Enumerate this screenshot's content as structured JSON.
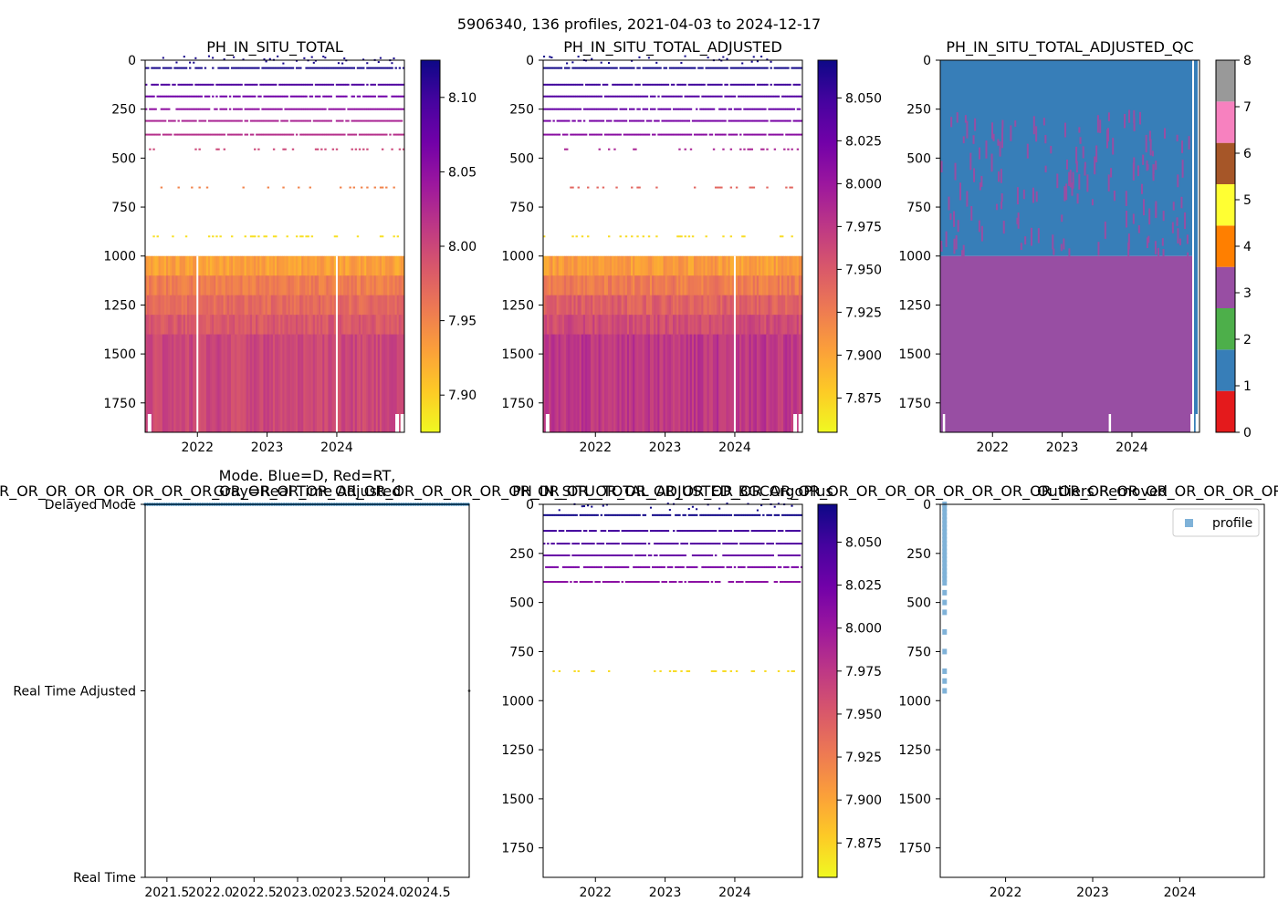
{
  "suptitle": "5906340, 136 profiles, 2021-04-03 to 2024-12-17",
  "colors": {
    "plasma": [
      "#f0f921",
      "#fdca26",
      "#fb9f3a",
      "#ed7953",
      "#d8576b",
      "#bd3786",
      "#9c179e",
      "#7201a8",
      "#46039f",
      "#0d0887"
    ],
    "qc": [
      "#e41a1c",
      "#377eb8",
      "#4daf4a",
      "#984ea3",
      "#ff7f00",
      "#ffff33",
      "#a65628",
      "#f781bf",
      "#999999"
    ],
    "mode_point": "#1f77b4",
    "profile_marker": "#7fb2d8"
  },
  "chart_data": [
    {
      "id": "p1",
      "type": "heatmap",
      "title": "PH_IN_SITU_TOTAL",
      "xlabel": "",
      "ylabel": "",
      "xlim": [
        2021.25,
        2024.97
      ],
      "ylim": [
        1900,
        0
      ],
      "x_ticks": [
        2022,
        2023,
        2024
      ],
      "y_ticks": [
        0,
        250,
        500,
        750,
        1000,
        1250,
        1500,
        1750
      ],
      "colorbar": {
        "range": [
          7.875,
          8.125
        ],
        "ticks": [
          7.9,
          7.95,
          8.0,
          8.05,
          8.1
        ],
        "tick_labels": [
          "7.90",
          "7.95",
          "8.00",
          "8.05",
          "8.10"
        ]
      },
      "sparse_depths": [
        {
          "depth": 40,
          "value": 8.12
        },
        {
          "depth": 125,
          "value": 8.09
        },
        {
          "depth": 185,
          "value": 8.07
        },
        {
          "depth": 250,
          "value": 8.05
        },
        {
          "depth": 310,
          "value": 8.03
        },
        {
          "depth": 380,
          "value": 8.02
        },
        {
          "depth": 455,
          "value": 8.0
        },
        {
          "depth": 650,
          "value": 7.95
        },
        {
          "depth": 900,
          "value": 7.89
        }
      ],
      "dense_bands": [
        {
          "from": 1000,
          "to": 1100,
          "value": 7.93
        },
        {
          "from": 1100,
          "to": 1200,
          "value": 7.955
        },
        {
          "from": 1200,
          "to": 1300,
          "value": 7.97
        },
        {
          "from": 1300,
          "to": 1400,
          "value": 7.985
        },
        {
          "from": 1400,
          "to": 1900,
          "value": 8.0
        }
      ],
      "gap_years": [
        2022.0,
        2024.0
      ]
    },
    {
      "id": "p2",
      "type": "heatmap",
      "title": "PH_IN_SITU_TOTAL_ADJUSTED",
      "xlim": [
        2021.25,
        2024.97
      ],
      "ylim": [
        1900,
        0
      ],
      "x_ticks": [
        2022,
        2023,
        2024
      ],
      "y_ticks": [
        0,
        250,
        500,
        750,
        1000,
        1250,
        1500,
        1750
      ],
      "colorbar": {
        "range": [
          7.855,
          8.072
        ],
        "ticks": [
          7.875,
          7.9,
          7.925,
          7.95,
          7.975,
          8.0,
          8.025,
          8.05
        ],
        "tick_labels": [
          "7.875",
          "7.900",
          "7.925",
          "7.950",
          "7.975",
          "8.000",
          "8.025",
          "8.050"
        ]
      },
      "sparse_depths": [
        {
          "depth": 40,
          "value": 8.07
        },
        {
          "depth": 125,
          "value": 8.05
        },
        {
          "depth": 185,
          "value": 8.04
        },
        {
          "depth": 250,
          "value": 8.03
        },
        {
          "depth": 310,
          "value": 8.02
        },
        {
          "depth": 380,
          "value": 8.01
        },
        {
          "depth": 455,
          "value": 7.99
        },
        {
          "depth": 650,
          "value": 7.94
        },
        {
          "depth": 900,
          "value": 7.87
        }
      ],
      "dense_bands": [
        {
          "from": 1000,
          "to": 1100,
          "value": 7.905
        },
        {
          "from": 1100,
          "to": 1200,
          "value": 7.925
        },
        {
          "from": 1200,
          "to": 1300,
          "value": 7.945
        },
        {
          "from": 1300,
          "to": 1400,
          "value": 7.96
        },
        {
          "from": 1400,
          "to": 1900,
          "value": 7.975
        }
      ],
      "gap_years": [
        2024.0
      ]
    },
    {
      "id": "p3",
      "type": "heatmap",
      "title": "PH_IN_SITU_TOTAL_ADJUSTED_QC",
      "xlim": [
        2021.25,
        2024.97
      ],
      "ylim": [
        1900,
        0
      ],
      "x_ticks": [
        2022,
        2023,
        2024
      ],
      "y_ticks": [
        0,
        250,
        500,
        750,
        1000,
        1250,
        1500,
        1750
      ],
      "colorbar": {
        "range": [
          0,
          8
        ],
        "ticks": [
          0,
          1,
          2,
          3,
          4,
          5,
          6,
          7,
          8
        ],
        "tick_labels": [
          "0",
          "1",
          "2",
          "3",
          "4",
          "5",
          "6",
          "7",
          "8"
        ]
      },
      "qc_regions": [
        {
          "from": 0,
          "to": 1000,
          "flag": 1
        },
        {
          "from": 1000,
          "to": 1900,
          "flag": 3
        }
      ],
      "qc_spots_flag": 3
    },
    {
      "id": "p4",
      "type": "scatter",
      "title_lines": [
        "Mode. Blue=D, Red=RT,",
        "Gray=Real Time Adjusted"
      ],
      "overlay_text": "OR_OR_OR_OR_OR_OR_OR_OR_OR_OR_OR_OR_OR_OR_OR_OR_OR_OR_OR_OR_OR_OR_OR_OR_OR_OR_OR_OR_OR_OR_OR_OR_OR_OR_OR_OR_OR_OR_OR_OR_OR_OR_OR_OR_OR_",
      "xlim": [
        2021.25,
        2024.97
      ],
      "ylim": [
        0,
        2
      ],
      "x_ticks": [
        2021.5,
        2022.0,
        2022.5,
        2023.0,
        2023.5,
        2024.0,
        2024.5
      ],
      "x_tick_labels": [
        "2021.5",
        "2022.0",
        "2022.5",
        "2023.0",
        "2023.5",
        "2024.0",
        "2024.5"
      ],
      "y_ticks": [
        0,
        1,
        2
      ],
      "y_tick_labels": [
        "Real Time",
        "Real Time Adjusted",
        "Delayed Mode"
      ],
      "series": [
        {
          "name": "mode",
          "value": 2,
          "n_profiles": 136,
          "x_start": 2021.25,
          "x_end": 2024.96
        }
      ]
    },
    {
      "id": "p5",
      "type": "heatmap",
      "title": "PH_IN_SITU_TOTAL_ADJUSTED_BGCArgoPlus",
      "xlim": [
        2021.25,
        2024.97
      ],
      "ylim": [
        1900,
        0
      ],
      "x_ticks": [
        2022,
        2023,
        2024
      ],
      "y_ticks": [
        0,
        250,
        500,
        750,
        1000,
        1250,
        1500,
        1750
      ],
      "colorbar": {
        "range": [
          7.855,
          8.072
        ],
        "ticks": [
          7.875,
          7.9,
          7.925,
          7.95,
          7.975,
          8.0,
          8.025,
          8.05
        ],
        "tick_labels": [
          "7.875",
          "7.900",
          "7.925",
          "7.950",
          "7.975",
          "8.000",
          "8.025",
          "8.050"
        ]
      },
      "sparse_depths": [
        {
          "depth": 55,
          "value": 8.07
        },
        {
          "depth": 135,
          "value": 8.05
        },
        {
          "depth": 200,
          "value": 8.04
        },
        {
          "depth": 260,
          "value": 8.03
        },
        {
          "depth": 320,
          "value": 8.02
        },
        {
          "depth": 395,
          "value": 8.01
        },
        {
          "depth": 850,
          "value": 7.87
        }
      ]
    },
    {
      "id": "p6",
      "type": "scatter",
      "title": "Outliers Removed",
      "xlim": [
        2021.25,
        2024.97
      ],
      "ylim": [
        1900,
        0
      ],
      "x_ticks": [
        2022,
        2023,
        2024
      ],
      "y_ticks": [
        0,
        250,
        500,
        750,
        1000,
        1250,
        1500,
        1750
      ],
      "legend": {
        "label": "profile",
        "placement": "top-right"
      },
      "series": [
        {
          "name": "profile",
          "x": 2021.3,
          "depths": [
            0,
            20,
            40,
            60,
            80,
            100,
            120,
            140,
            160,
            180,
            200,
            220,
            240,
            260,
            280,
            300,
            320,
            340,
            360,
            380,
            400,
            450,
            500,
            550,
            650,
            750,
            850,
            900,
            950
          ]
        }
      ]
    }
  ]
}
